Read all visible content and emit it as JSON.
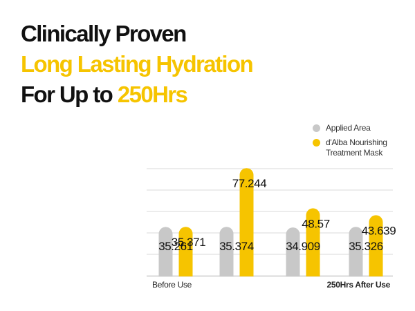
{
  "headline": {
    "line1": "Clinically Proven",
    "line2": "Long Lasting Hydration",
    "line3_prefix": "For Up to ",
    "line3_highlight": "250Hrs"
  },
  "colors": {
    "accent": "#f6c400",
    "applied_area": "#c8c8c8",
    "text": "#111111",
    "grid": "#d9d9d9"
  },
  "chart_data": {
    "type": "bar",
    "categories": [
      "",
      "",
      "",
      ""
    ],
    "series": [
      {
        "name": "Applied Area",
        "values": [
          35.261,
          35.374,
          34.909,
          35.326
        ]
      },
      {
        "name": "d'Alba Nourishing Treatment Mask",
        "values": [
          35.371,
          77.244,
          48.57,
          43.639
        ]
      }
    ],
    "legend_labels": [
      {
        "lines": [
          "Applied Area"
        ]
      },
      {
        "lines": [
          "d'Alba Nourishing",
          "Treatment Mask"
        ]
      }
    ],
    "axis_labels": {
      "start": "Before Use",
      "end": "250Hrs After Use"
    },
    "grid": true,
    "legend_position": "top-right"
  }
}
